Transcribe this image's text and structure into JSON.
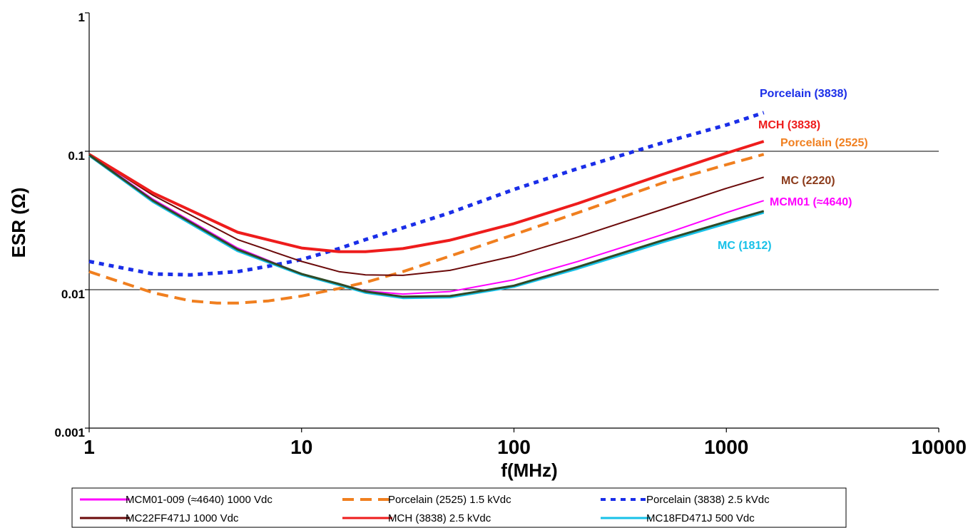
{
  "chart_data": {
    "type": "line",
    "title": "",
    "xlabel": "f(MHz)",
    "ylabel": "ESR (Ω)",
    "x_scale": "log",
    "y_scale": "log",
    "xlim": [
      1,
      10000
    ],
    "ylim": [
      0.001,
      1
    ],
    "x_ticks": [
      {
        "value": 1,
        "label": "1"
      },
      {
        "value": 10,
        "label": "10"
      },
      {
        "value": 100,
        "label": "100"
      },
      {
        "value": 1000,
        "label": "1000"
      },
      {
        "value": 10000,
        "label": "10000"
      }
    ],
    "y_ticks": [
      {
        "value": 0.001,
        "label": "0.001"
      },
      {
        "value": 0.01,
        "label": "0.01"
      },
      {
        "value": 0.1,
        "label": "0.1"
      },
      {
        "value": 1,
        "label": "1"
      }
    ],
    "grid": "horizontal",
    "legend_position": "bottom",
    "series": [
      {
        "name": "MCM01-009 (≈4640) 1000 Vdc",
        "color": "#ff00ff",
        "dash": "solid",
        "width": 2,
        "x": [
          1,
          2,
          5,
          10,
          15,
          20,
          30,
          50,
          100,
          200,
          500,
          1000,
          1500
        ],
        "y": [
          0.095,
          0.045,
          0.02,
          0.013,
          0.011,
          0.0098,
          0.0093,
          0.0097,
          0.0118,
          0.016,
          0.025,
          0.036,
          0.044
        ]
      },
      {
        "name": "Porcelain (2525) 1.5 kVdc",
        "color": "#f07f1f",
        "dash": "dash",
        "width": 4,
        "x": [
          1,
          2,
          3,
          4,
          5,
          7,
          10,
          15,
          20,
          30,
          50,
          100,
          200,
          500,
          1000,
          1500
        ],
        "y": [
          0.0135,
          0.0095,
          0.0083,
          0.008,
          0.008,
          0.0083,
          0.009,
          0.0102,
          0.0113,
          0.0135,
          0.0175,
          0.025,
          0.036,
          0.059,
          0.08,
          0.095
        ]
      },
      {
        "name": "Porcelain (3838) 2.5 kVdc",
        "color": "#1a2ee8",
        "dash": "dot",
        "width": 5,
        "x": [
          1,
          2,
          3,
          5,
          7,
          10,
          15,
          20,
          30,
          50,
          100,
          200,
          500,
          1000,
          1500
        ],
        "y": [
          0.016,
          0.013,
          0.0128,
          0.0135,
          0.0148,
          0.0165,
          0.0198,
          0.023,
          0.028,
          0.036,
          0.053,
          0.075,
          0.115,
          0.155,
          0.19
        ]
      },
      {
        "name": "MC22FF471J  1000 Vdc",
        "color": "#6b0a0a",
        "dash": "solid",
        "width": 2,
        "x": [
          1,
          2,
          5,
          10,
          15,
          20,
          30,
          50,
          100,
          200,
          500,
          1000,
          1500
        ],
        "y": [
          0.095,
          0.048,
          0.023,
          0.016,
          0.0135,
          0.0128,
          0.0127,
          0.0138,
          0.0175,
          0.024,
          0.038,
          0.054,
          0.065
        ]
      },
      {
        "name": "MCH (3838)  2.5  kVdc",
        "color": "#ee1c1c",
        "dash": "solid",
        "width": 4,
        "x": [
          1,
          2,
          5,
          10,
          15,
          20,
          30,
          50,
          100,
          200,
          500,
          1000,
          1500
        ],
        "y": [
          0.095,
          0.05,
          0.026,
          0.02,
          0.0188,
          0.0188,
          0.0198,
          0.0228,
          0.03,
          0.042,
          0.068,
          0.097,
          0.118
        ]
      },
      {
        "name": "MC18FD471J  500 Vdc",
        "color": "#17c1e8",
        "dash": "solid",
        "width": 3,
        "x": [
          1,
          2,
          5,
          10,
          15,
          20,
          30,
          50,
          100,
          200,
          500,
          1000,
          1500
        ],
        "y": [
          0.093,
          0.043,
          0.019,
          0.0128,
          0.0108,
          0.0095,
          0.0087,
          0.0088,
          0.0105,
          0.0142,
          0.022,
          0.03,
          0.036
        ]
      },
      {
        "name": "",
        "color": "#2f4a26",
        "dash": "solid",
        "width": 3,
        "x": [
          1,
          2,
          5,
          10,
          15,
          20,
          30,
          50,
          100,
          200,
          500,
          1000,
          1500
        ],
        "y": [
          0.094,
          0.044,
          0.0195,
          0.013,
          0.011,
          0.0097,
          0.0089,
          0.009,
          0.0107,
          0.0146,
          0.0227,
          0.031,
          0.037
        ]
      }
    ],
    "annotations": [
      {
        "text": "Porcelain (3838)",
        "color": "#1a2ee8"
      },
      {
        "text": "MCH (3838)",
        "color": "#ee1c1c"
      },
      {
        "text": "Porcelain (2525)",
        "color": "#f07f1f"
      },
      {
        "text": "MC (2220)",
        "color": "#8b3a1a"
      },
      {
        "text": "MCM01 (≈4640)",
        "color": "#ff00ff"
      },
      {
        "text": "MC (1812)",
        "color": "#17c1e8"
      }
    ],
    "legend": [
      {
        "label": "MCM01-009 (≈4640) 1000 Vdc",
        "color": "#ff00ff",
        "dash": "solid"
      },
      {
        "label": "Porcelain (2525) 1.5 kVdc",
        "color": "#f07f1f",
        "dash": "dash"
      },
      {
        "label": "Porcelain (3838) 2.5 kVdc",
        "color": "#1a2ee8",
        "dash": "dot"
      },
      {
        "label": "MC22FF471J  1000 Vdc",
        "color": "#6b0a0a",
        "dash": "solid"
      },
      {
        "label": "MCH (3838)  2.5  kVdc",
        "color": "#ee1c1c",
        "dash": "solid"
      },
      {
        "label": "MC18FD471J  500 Vdc",
        "color": "#17c1e8",
        "dash": "solid"
      }
    ]
  }
}
